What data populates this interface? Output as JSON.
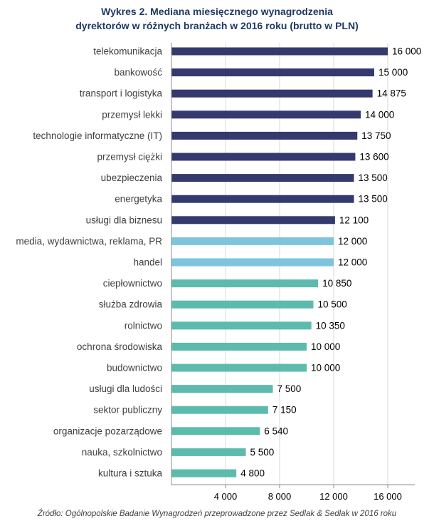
{
  "chart_data": {
    "type": "bar",
    "orientation": "horizontal",
    "title": "Wykres 2. Mediana miesięcznego wynagrodzenia",
    "subtitle": "dyrektorów w różnych branżach w 2016 roku (brutto w PLN)",
    "categories": [
      "telekomunikacja",
      "bankowość",
      "transport i logistyka",
      "przemysł lekki",
      "technologie informatyczne (IT)",
      "przemysł ciężki",
      "ubezpieczenia",
      "energetyka",
      "usługi dla biznesu",
      "media, wydawnictwa, reklama, PR",
      "handel",
      "ciepłownictwo",
      "służba zdrowia",
      "rolnictwo",
      "ochrona środowiska",
      "budownictwo",
      "usługi dla ludości",
      "sektor publiczny",
      "organizacje pozarządowe",
      "nauka, szkolnictwo",
      "kultura i sztuka"
    ],
    "values": [
      16000,
      15000,
      14875,
      14000,
      13750,
      13600,
      13500,
      13500,
      12100,
      12000,
      12000,
      10850,
      10500,
      10350,
      10000,
      10000,
      7500,
      7150,
      6540,
      5500,
      4800
    ],
    "value_labels": [
      "16 000",
      "15 000",
      "14 875",
      "14 000",
      "13 750",
      "13 600",
      "13 500",
      "13 500",
      "12 100",
      "12 000",
      "12 000",
      "10 850",
      "10 500",
      "10 350",
      "10 000",
      "10 000",
      "7 500",
      "7 150",
      "6 540",
      "5 500",
      "4 800"
    ],
    "groups": [
      "high",
      "high",
      "high",
      "high",
      "high",
      "high",
      "high",
      "high",
      "high",
      "mid",
      "mid",
      "low",
      "low",
      "low",
      "low",
      "low",
      "low",
      "low",
      "low",
      "low",
      "low"
    ],
    "colors": {
      "high": "#343a6e",
      "mid": "#7ec4dd",
      "low": "#5dbbad"
    },
    "xticks": [
      4000,
      8000,
      12000,
      16000
    ],
    "xtick_labels": [
      "4 000",
      "8 000",
      "12 000",
      "16 000"
    ],
    "xlim": [
      0,
      18000
    ],
    "grid": true,
    "xlabel": "",
    "ylabel": ""
  },
  "source": "Źródło: Ogólnopolskie Badanie Wynagrodzeń przeprowadzone przez Sedlak & Sedlak w 2016 roku"
}
